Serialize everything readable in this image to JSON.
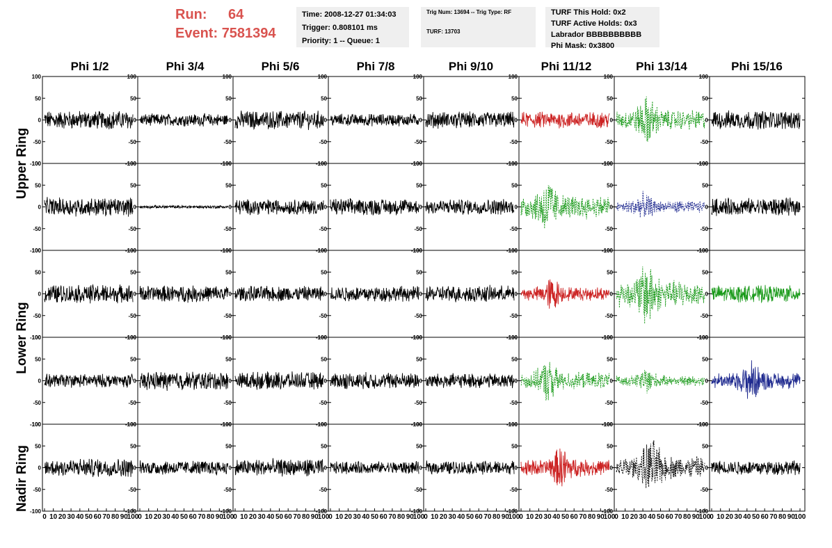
{
  "header": {
    "run_label": "Run:",
    "run_value": "64",
    "event_label": "Event:",
    "event_value": "7581394"
  },
  "info": {
    "time": "Time: 2008-12-27 01:34:03",
    "trigger": "Trigger: 0.808101 ms",
    "priority": "Priority: 1 -- Queue: 1",
    "trig_num": "Trig Num: 13694 -- Trig Type: RF",
    "turf": "TURF: 13703",
    "turf_hold": "TURF This Hold: 0x2",
    "turf_active": "TURF Active Holds: 0x3",
    "labrador": "Labrador BBBBBBBBBB",
    "phi_mask": "Phi Mask: 0x3800"
  },
  "columns": [
    "Phi 1/2",
    "Phi 3/4",
    "Phi 5/6",
    "Phi 7/8",
    "Phi 9/10",
    "Phi 11/12",
    "Phi 13/14",
    "Phi 15/16"
  ],
  "rows": [
    "Upper Ring",
    "Lower Ring",
    "Nadir Ring"
  ],
  "colors": {
    "black": "#000000",
    "red": "#cc2222",
    "green": "#1a9a1a",
    "blue": "#1f2a8f",
    "run_red": "#d9534f"
  },
  "chart_data": {
    "type": "line",
    "description_grid": "5 waveform rows x 8 phi columns; each panel is a voltage trace vs sample index",
    "xlim": [
      0,
      100
    ],
    "ylim": [
      -100,
      100
    ],
    "y_ticks": [
      -100,
      -50,
      0,
      50,
      100
    ],
    "x_ticks": [
      0,
      10,
      20,
      30,
      40,
      50,
      60,
      70,
      80,
      90,
      100
    ],
    "panels": [
      [
        {
          "color": "black",
          "amp": 18,
          "style": "solid"
        },
        {
          "color": "black",
          "amp": 12,
          "style": "solid"
        },
        {
          "color": "black",
          "amp": 18,
          "style": "solid"
        },
        {
          "color": "black",
          "amp": 12,
          "style": "solid"
        },
        {
          "color": "black",
          "amp": 16,
          "style": "solid"
        },
        {
          "color": "red",
          "amp": 16,
          "style": "solid"
        },
        {
          "color": "green",
          "amp": 30,
          "style": "dashed",
          "peak": 0.35
        },
        {
          "color": "black",
          "amp": 18,
          "style": "solid"
        }
      ],
      [
        {
          "color": "black",
          "amp": 18,
          "style": "solid"
        },
        {
          "color": "black",
          "amp": 3,
          "style": "solid"
        },
        {
          "color": "black",
          "amp": 15,
          "style": "solid"
        },
        {
          "color": "black",
          "amp": 16,
          "style": "solid"
        },
        {
          "color": "black",
          "amp": 15,
          "style": "solid"
        },
        {
          "color": "green",
          "amp": 35,
          "style": "dashed",
          "peak": 0.3
        },
        {
          "color": "blue",
          "amp": 18,
          "style": "dashed",
          "peak": 0.3
        },
        {
          "color": "black",
          "amp": 17,
          "style": "solid"
        }
      ],
      [
        {
          "color": "black",
          "amp": 18,
          "style": "solid"
        },
        {
          "color": "black",
          "amp": 16,
          "style": "solid"
        },
        {
          "color": "black",
          "amp": 15,
          "style": "solid"
        },
        {
          "color": "black",
          "amp": 15,
          "style": "solid"
        },
        {
          "color": "black",
          "amp": 16,
          "style": "solid"
        },
        {
          "color": "red",
          "amp": 20,
          "style": "solid",
          "peak": 0.35
        },
        {
          "color": "green",
          "amp": 40,
          "style": "dashed",
          "peak": 0.35
        },
        {
          "color": "green",
          "amp": 16,
          "style": "solid"
        }
      ],
      [
        {
          "color": "black",
          "amp": 13,
          "style": "solid"
        },
        {
          "color": "black",
          "amp": 18,
          "style": "solid"
        },
        {
          "color": "black",
          "amp": 17,
          "style": "solid"
        },
        {
          "color": "black",
          "amp": 16,
          "style": "solid"
        },
        {
          "color": "black",
          "amp": 14,
          "style": "solid"
        },
        {
          "color": "green",
          "amp": 25,
          "style": "dashed",
          "peak": 0.3
        },
        {
          "color": "green",
          "amp": 15,
          "style": "dashed",
          "peak": 0.35
        },
        {
          "color": "blue",
          "amp": 25,
          "style": "solid",
          "peak": 0.45
        }
      ],
      [
        {
          "color": "black",
          "amp": 18,
          "style": "solid"
        },
        {
          "color": "black",
          "amp": 14,
          "style": "solid"
        },
        {
          "color": "black",
          "amp": 17,
          "style": "solid"
        },
        {
          "color": "black",
          "amp": 12,
          "style": "solid"
        },
        {
          "color": "black",
          "amp": 13,
          "style": "solid"
        },
        {
          "color": "red",
          "amp": 25,
          "style": "solid",
          "peak": 0.45
        },
        {
          "color": "black",
          "amp": 35,
          "style": "dashed",
          "peak": 0.4
        },
        {
          "color": "black",
          "amp": 14,
          "style": "solid"
        }
      ]
    ]
  }
}
